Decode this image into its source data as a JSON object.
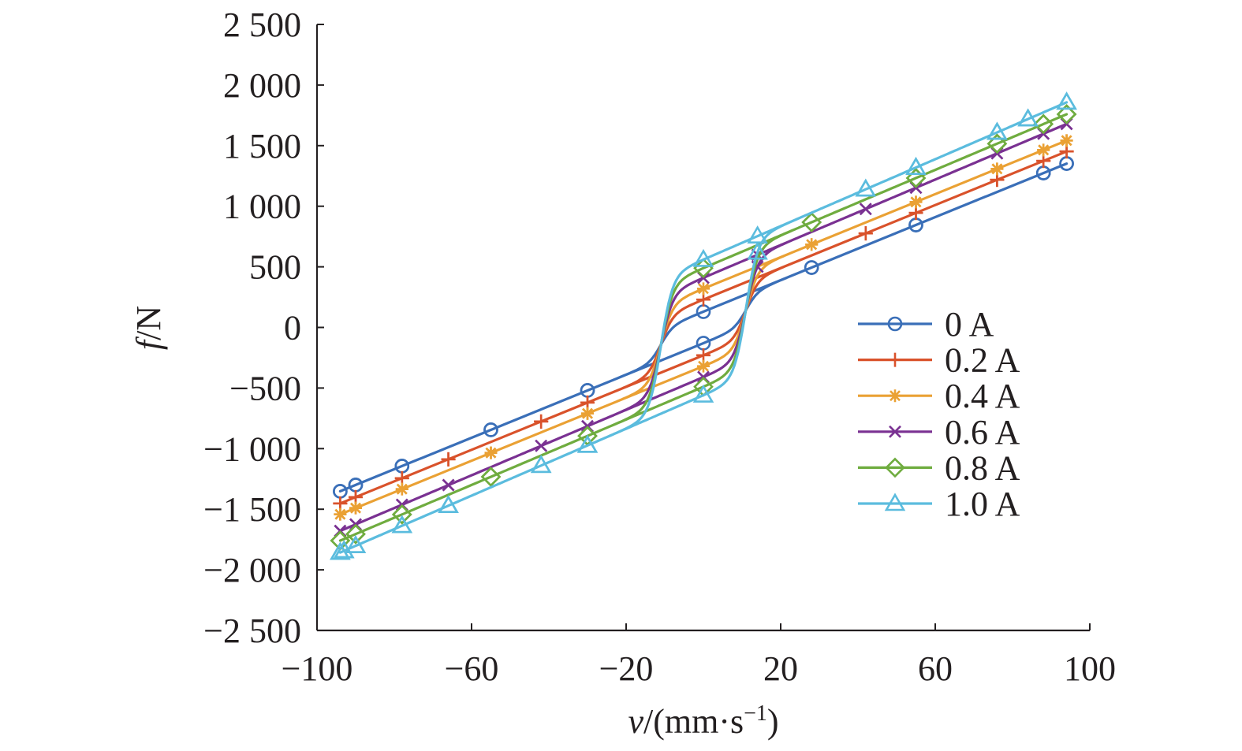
{
  "chart_data": {
    "type": "line",
    "title": "",
    "xlabel_var": "v",
    "xlabel_unit": "/(mm·s",
    "xlabel_exp": "−1",
    "xlabel_close": ")",
    "ylabel_var": "f",
    "ylabel_unit": "/N",
    "xlim": [
      -100,
      100
    ],
    "ylim": [
      -2500,
      2500
    ],
    "xticks": [
      -100,
      -60,
      -20,
      20,
      60,
      100
    ],
    "xtick_labels": [
      "−100",
      "−60",
      "−20",
      "20",
      "60",
      "100"
    ],
    "yticks": [
      2500,
      2000,
      1500,
      1000,
      500,
      0,
      -500,
      -1000,
      -1500,
      -2000,
      -2500
    ],
    "ytick_labels": [
      "2 500",
      "2 000",
      "1 500",
      "1 000",
      "500",
      "0",
      "−500",
      "−1 000",
      "−1 500",
      "−2 000",
      "−2 500"
    ],
    "grid": false,
    "legend_position": "right",
    "series": [
      {
        "name": "0 A",
        "color": "#3a6fb8",
        "marker": "circle",
        "markers": [
          -94,
          -90,
          -78,
          -55,
          -30,
          0,
          28,
          55,
          88,
          94
        ],
        "fy0": 130,
        "slope": 13.0,
        "sat": 500,
        "ymax": 1410,
        "ymin": -1410
      },
      {
        "name": "0.2 A",
        "color": "#d9522b",
        "marker": "plus",
        "markers": [
          -94,
          -90,
          -78,
          -66,
          -42,
          -30,
          0,
          42,
          55,
          76,
          88,
          94
        ],
        "fy0": 230,
        "slope": 13.0,
        "sat": 700,
        "ymax": 1510,
        "ymin": -1510
      },
      {
        "name": "0.4 A",
        "color": "#eaa134",
        "marker": "asterisk",
        "markers": [
          -94,
          -90,
          -78,
          -55,
          -30,
          0,
          28,
          55,
          76,
          88,
          94
        ],
        "fy0": 320,
        "slope": 13.0,
        "sat": 780,
        "ymax": 1680,
        "ymin": -1680
      },
      {
        "name": "0.6 A",
        "color": "#7a3192",
        "marker": "x",
        "markers": [
          -94,
          -90,
          -78,
          -66,
          -42,
          -30,
          0,
          14,
          42,
          55,
          76,
          88,
          94
        ],
        "fy0": 410,
        "slope": 13.5,
        "sat": 860,
        "ymax": 1810,
        "ymin": -1810
      },
      {
        "name": "0.8 A",
        "color": "#6fac3f",
        "marker": "diamond",
        "markers": [
          -94,
          -90,
          -78,
          -55,
          -30,
          0,
          28,
          55,
          76,
          88,
          94
        ],
        "fy0": 490,
        "slope": 13.5,
        "sat": 940,
        "ymax": 1960,
        "ymin": -1960
      },
      {
        "name": "1.0 A",
        "color": "#5bbcde",
        "marker": "triangle",
        "markers": [
          -94,
          -93,
          -90,
          -78,
          -66,
          -42,
          -30,
          0,
          14,
          42,
          55,
          76,
          84,
          94
        ],
        "fy0": 560,
        "slope": 13.8,
        "sat": 1000,
        "ymax": 2060,
        "ymin": -2060
      }
    ]
  }
}
